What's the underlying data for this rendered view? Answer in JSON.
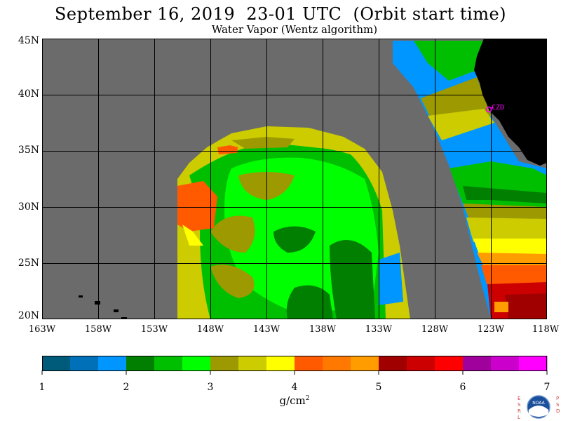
{
  "title": "September 16, 2019  23-01 UTC  (Orbit start time)",
  "subtitle": "Water Vapor (Wentz algorithm)",
  "lat_labels": [
    "45N",
    "40N",
    "35N",
    "30N",
    "25N",
    "20N"
  ],
  "lon_labels": [
    "163W",
    "158W",
    "153W",
    "148W",
    "143W",
    "138W",
    "133W",
    "128W",
    "123W",
    "118W"
  ],
  "station_label": "CZD",
  "colorbar": {
    "tick_labels": [
      "1",
      "2",
      "3",
      "4",
      "5",
      "6",
      "7"
    ],
    "units_base": "g/cm",
    "units_exp": "2",
    "colors": [
      "#005a7a",
      "#0071b8",
      "#0096ff",
      "#007f00",
      "#00bf00",
      "#00ff00",
      "#9c9a00",
      "#cccc00",
      "#ffff00",
      "#ff5a00",
      "#ff7800",
      "#ff9c00",
      "#a00000",
      "#cc0000",
      "#ff0000",
      "#a0009c",
      "#cc00cc",
      "#ff00ff"
    ]
  },
  "map_colors": {
    "no_data": "#6b6b6b",
    "land": "#000000",
    "grid": "#000000",
    "station": "#ff00ff"
  },
  "logo": {
    "left_letters": "ESRL",
    "right_letters": "PSD",
    "center_text": "NOAA"
  }
}
